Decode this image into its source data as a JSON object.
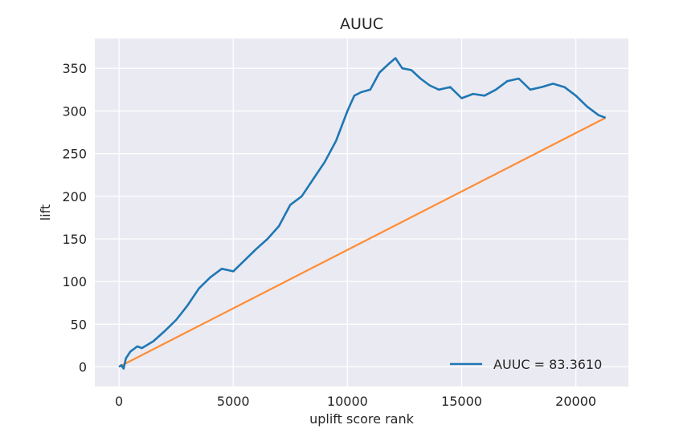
{
  "chart_data": {
    "type": "line",
    "title": "AUUC",
    "xlabel": "uplift score rank",
    "ylabel": "lift",
    "xlim": [
      -1060,
      22300
    ],
    "ylim": [
      -23,
      385
    ],
    "xticks": [
      0,
      5000,
      10000,
      15000,
      20000
    ],
    "yticks": [
      0,
      50,
      100,
      150,
      200,
      250,
      300,
      350
    ],
    "grid": true,
    "legend_position": "lower-right",
    "background_color": "#EAEAF2",
    "series": [
      {
        "name": "AUUC = 83.3610",
        "color": "#1F77B4",
        "x": [
          0,
          100,
          200,
          300,
          500,
          800,
          1000,
          1500,
          2000,
          2500,
          3000,
          3500,
          4000,
          4500,
          5000,
          5500,
          6000,
          6500,
          7000,
          7500,
          8000,
          8500,
          9000,
          9500,
          10000,
          10300,
          10600,
          11000,
          11400,
          11800,
          12100,
          12400,
          12800,
          13200,
          13600,
          14000,
          14500,
          15000,
          15500,
          16000,
          16500,
          17000,
          17500,
          18000,
          18500,
          19000,
          19500,
          20000,
          20500,
          21000,
          21300
        ],
        "y": [
          0,
          2,
          -2,
          10,
          18,
          24,
          22,
          30,
          42,
          55,
          72,
          92,
          105,
          115,
          112,
          125,
          138,
          150,
          165,
          190,
          200,
          220,
          240,
          265,
          300,
          318,
          322,
          325,
          345,
          355,
          362,
          350,
          348,
          338,
          330,
          325,
          328,
          315,
          320,
          318,
          325,
          335,
          338,
          325,
          328,
          332,
          328,
          318,
          305,
          295,
          292
        ]
      },
      {
        "name": "",
        "color": "#FF8C34",
        "x": [
          0,
          21300
        ],
        "y": [
          0,
          292
        ]
      }
    ]
  }
}
